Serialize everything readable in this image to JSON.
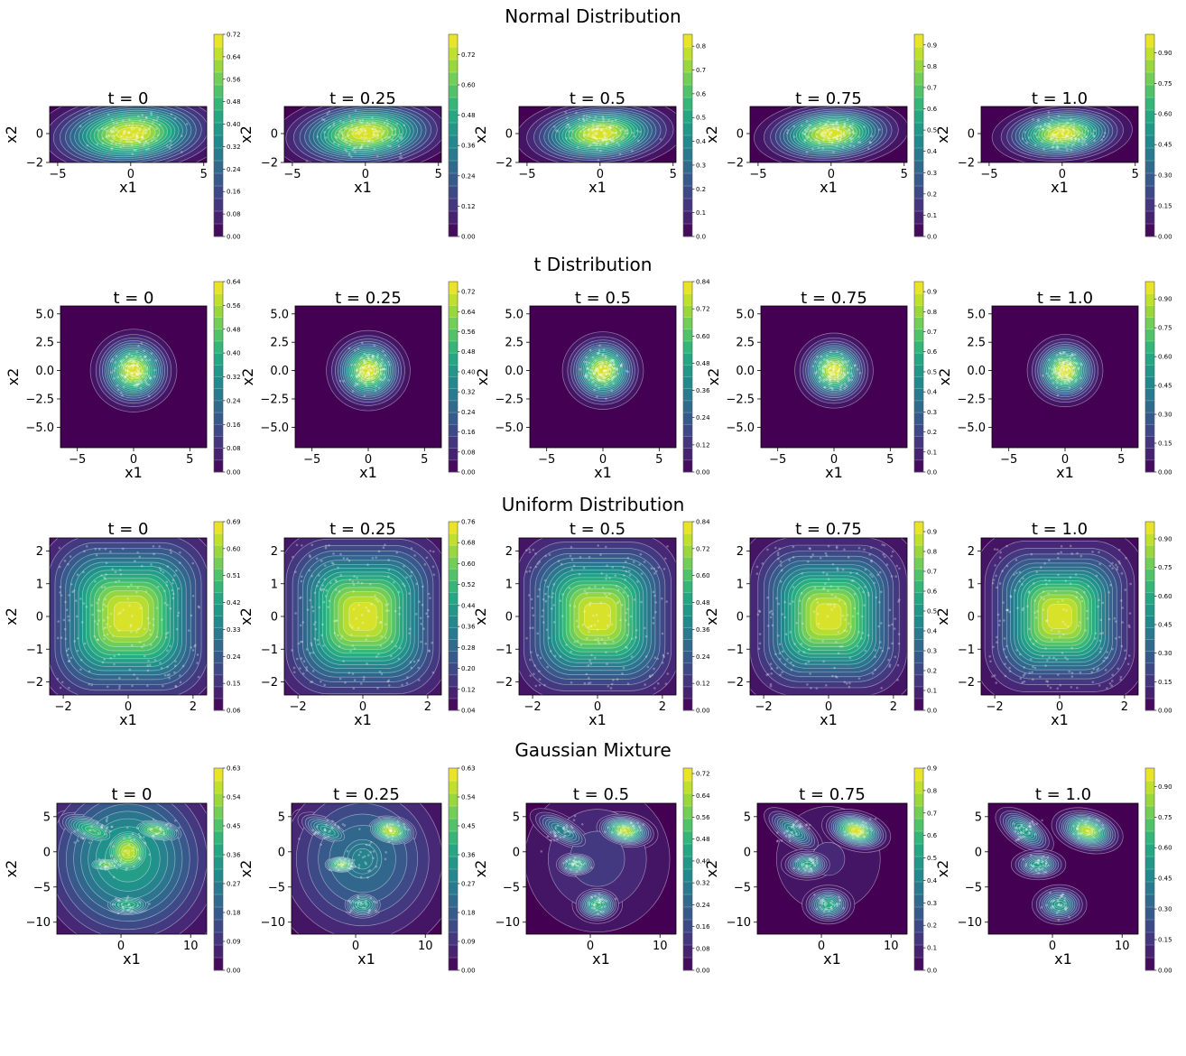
{
  "chart_data": {
    "type": "contour",
    "grid": false,
    "rows": [
      {
        "title": "Normal Distribution",
        "xlabel": "x1",
        "ylabel": "x2",
        "xlim": [
          -5.55,
          5.2
        ],
        "ylim": [
          -2,
          1.875
        ],
        "xticks": [
          "−5",
          "0",
          "5"
        ],
        "yticks": [
          "−2",
          "0"
        ],
        "panels": [
          {
            "title": "t = 0",
            "colorbar": {
              "range": [
                0,
                0.72
              ],
              "ticks": [
                "0.00",
                "0.08",
                "0.16",
                "0.24",
                "0.32",
                "0.40",
                "0.48",
                "0.56",
                "0.64",
                "0.72"
              ]
            }
          },
          {
            "title": "t = 0.25",
            "colorbar": {
              "range": [
                0,
                0.8
              ],
              "ticks": [
                "0.00",
                "0.12",
                "0.24",
                "0.36",
                "0.48",
                "0.60",
                "0.72"
              ]
            }
          },
          {
            "title": "t = 0.5",
            "colorbar": {
              "range": [
                0,
                0.85
              ],
              "ticks": [
                "0.0",
                "0.1",
                "0.2",
                "0.3",
                "0.4",
                "0.5",
                "0.6",
                "0.7",
                "0.8"
              ]
            }
          },
          {
            "title": "t = 0.75",
            "colorbar": {
              "range": [
                0,
                0.95
              ],
              "ticks": [
                "0.0",
                "0.1",
                "0.2",
                "0.3",
                "0.4",
                "0.5",
                "0.6",
                "0.7",
                "0.8",
                "0.9"
              ]
            }
          },
          {
            "title": "t = 1.0",
            "colorbar": {
              "range": [
                0,
                0.99
              ],
              "ticks": [
                "0.00",
                "0.15",
                "0.30",
                "0.45",
                "0.60",
                "0.75",
                "0.90"
              ]
            }
          }
        ]
      },
      {
        "title": "t Distribution",
        "xlabel": "x1",
        "ylabel": "x2",
        "xlim": [
          -6.5,
          6.5
        ],
        "ylim": [
          -6.8,
          5.7
        ],
        "xticks": [
          "−5",
          "0",
          "5"
        ],
        "yticks": [
          "−5.0",
          "−2.5",
          "0.0",
          "2.5",
          "5.0"
        ],
        "panels": [
          {
            "title": "t = 0",
            "colorbar": {
              "range": [
                0,
                0.64
              ],
              "ticks": [
                "0.00",
                "0.08",
                "0.16",
                "0.24",
                "0.32",
                "0.40",
                "0.48",
                "0.56",
                "0.64"
              ]
            }
          },
          {
            "title": "t = 0.25",
            "colorbar": {
              "range": [
                0,
                0.76
              ],
              "ticks": [
                "0.00",
                "0.08",
                "0.16",
                "0.24",
                "0.32",
                "0.40",
                "0.48",
                "0.56",
                "0.64",
                "0.72"
              ]
            }
          },
          {
            "title": "t = 0.5",
            "colorbar": {
              "range": [
                0,
                0.84
              ],
              "ticks": [
                "0.00",
                "0.12",
                "0.24",
                "0.36",
                "0.48",
                "0.60",
                "0.72",
                "0.84"
              ]
            }
          },
          {
            "title": "t = 0.75",
            "colorbar": {
              "range": [
                0,
                0.95
              ],
              "ticks": [
                "0.0",
                "0.1",
                "0.2",
                "0.3",
                "0.4",
                "0.5",
                "0.6",
                "0.7",
                "0.8",
                "0.9"
              ]
            }
          },
          {
            "title": "t = 1.0",
            "colorbar": {
              "range": [
                0,
                0.99
              ],
              "ticks": [
                "0.00",
                "0.15",
                "0.30",
                "0.45",
                "0.60",
                "0.75",
                "0.90"
              ]
            }
          }
        ]
      },
      {
        "title": "Uniform Distribution",
        "xlabel": "x1",
        "ylabel": "x2",
        "xlim": [
          -2.42,
          2.42
        ],
        "ylim": [
          -2.4,
          2.4
        ],
        "xticks": [
          "−2",
          "0",
          "2"
        ],
        "yticks": [
          "−2",
          "−1",
          "0",
          "1",
          "2"
        ],
        "panels": [
          {
            "title": "t = 0",
            "colorbar": {
              "range": [
                0.06,
                0.69
              ],
              "ticks": [
                "0.06",
                "0.15",
                "0.24",
                "0.33",
                "0.42",
                "0.51",
                "0.60",
                "0.69"
              ]
            }
          },
          {
            "title": "t = 0.25",
            "colorbar": {
              "range": [
                0.04,
                0.76
              ],
              "ticks": [
                "0.04",
                "0.12",
                "0.20",
                "0.28",
                "0.36",
                "0.44",
                "0.52",
                "0.60",
                "0.68",
                "0.76"
              ]
            }
          },
          {
            "title": "t = 0.5",
            "colorbar": {
              "range": [
                0,
                0.84
              ],
              "ticks": [
                "0.00",
                "0.12",
                "0.24",
                "0.36",
                "0.48",
                "0.60",
                "0.72",
                "0.84"
              ]
            }
          },
          {
            "title": "t = 0.75",
            "colorbar": {
              "range": [
                0,
                0.95
              ],
              "ticks": [
                "0.0",
                "0.1",
                "0.2",
                "0.3",
                "0.4",
                "0.5",
                "0.6",
                "0.7",
                "0.8",
                "0.9"
              ]
            }
          },
          {
            "title": "t = 1.0",
            "colorbar": {
              "range": [
                0,
                0.99
              ],
              "ticks": [
                "0.00",
                "0.15",
                "0.30",
                "0.45",
                "0.60",
                "0.75",
                "0.90"
              ]
            }
          }
        ]
      },
      {
        "title": "Gaussian Mixture",
        "xlabel": "x1",
        "ylabel": "x2",
        "xlim": [
          -9.2,
          12.3
        ],
        "ylim": [
          -11.7,
          6.9
        ],
        "xticks": [
          "0",
          "10"
        ],
        "yticks": [
          "−10",
          "−5",
          "0",
          "5"
        ],
        "panels": [
          {
            "title": "t = 0",
            "colorbar": {
              "range": [
                0,
                0.63
              ],
              "ticks": [
                "0.00",
                "0.09",
                "0.18",
                "0.27",
                "0.36",
                "0.45",
                "0.54",
                "0.63"
              ]
            }
          },
          {
            "title": "t = 0.25",
            "colorbar": {
              "range": [
                0,
                0.63
              ],
              "ticks": [
                "0.00",
                "0.09",
                "0.18",
                "0.27",
                "0.36",
                "0.45",
                "0.54",
                "0.63"
              ]
            }
          },
          {
            "title": "t = 0.5",
            "colorbar": {
              "range": [
                0,
                0.74
              ],
              "ticks": [
                "0.00",
                "0.08",
                "0.16",
                "0.24",
                "0.32",
                "0.40",
                "0.48",
                "0.56",
                "0.64",
                "0.72"
              ]
            }
          },
          {
            "title": "t = 0.75",
            "colorbar": {
              "range": [
                0,
                0.9
              ],
              "ticks": [
                "0.0",
                "0.1",
                "0.2",
                "0.3",
                "0.4",
                "0.5",
                "0.6",
                "0.7",
                "0.8",
                "0.9"
              ]
            }
          },
          {
            "title": "t = 1.0",
            "colorbar": {
              "range": [
                0,
                0.99
              ],
              "ticks": [
                "0.00",
                "0.15",
                "0.30",
                "0.45",
                "0.60",
                "0.75",
                "0.90"
              ]
            }
          }
        ]
      }
    ],
    "colormap": "viridis",
    "contour_line_color": "#ffffff",
    "sample_point_color": "#ffffff"
  }
}
